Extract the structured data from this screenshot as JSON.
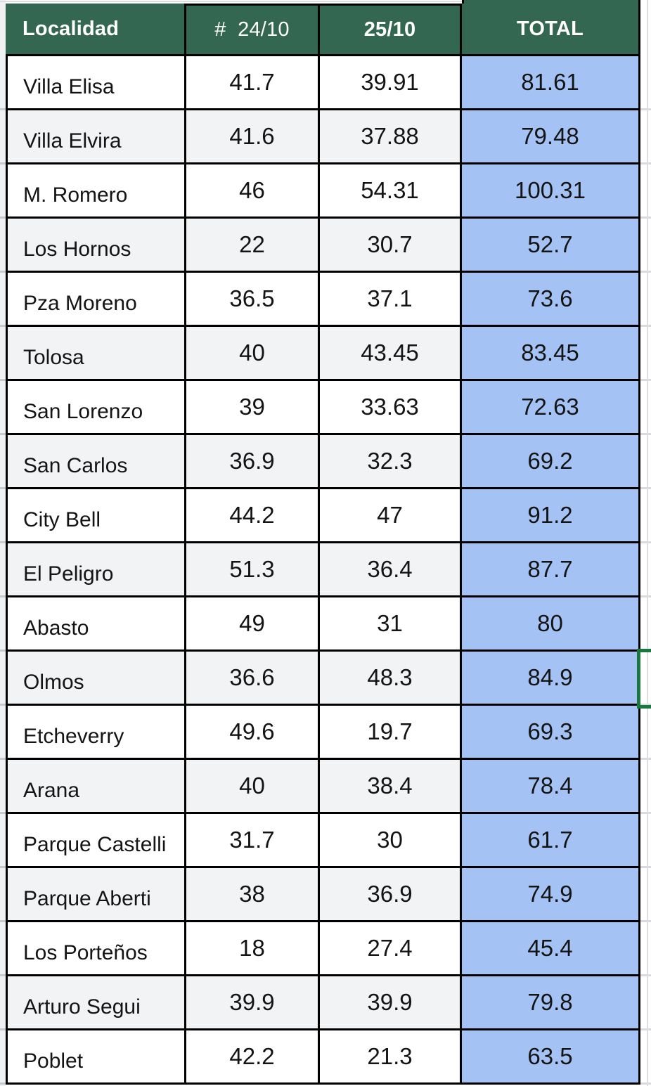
{
  "header": {
    "localidad": "Localidad",
    "col24": "#  24/10",
    "col25": "25/10",
    "total": "TOTAL"
  },
  "table": {
    "rows": [
      {
        "localidad": "Villa Elisa",
        "d24": "41.7",
        "d25": "39.91",
        "total": "81.61"
      },
      {
        "localidad": "Villa Elvira",
        "d24": "41.6",
        "d25": "37.88",
        "total": "79.48"
      },
      {
        "localidad": "M. Romero",
        "d24": "46",
        "d25": "54.31",
        "total": "100.31"
      },
      {
        "localidad": "Los Hornos",
        "d24": "22",
        "d25": "30.7",
        "total": "52.7"
      },
      {
        "localidad": "Pza Moreno",
        "d24": "36.5",
        "d25": "37.1",
        "total": "73.6"
      },
      {
        "localidad": "Tolosa",
        "d24": "40",
        "d25": "43.45",
        "total": "83.45"
      },
      {
        "localidad": "San Lorenzo",
        "d24": "39",
        "d25": "33.63",
        "total": "72.63"
      },
      {
        "localidad": "San Carlos",
        "d24": "36.9",
        "d25": "32.3",
        "total": "69.2"
      },
      {
        "localidad": "City Bell",
        "d24": "44.2",
        "d25": "47",
        "total": "91.2"
      },
      {
        "localidad": "El Peligro",
        "d24": "51.3",
        "d25": "36.4",
        "total": "87.7"
      },
      {
        "localidad": "Abasto",
        "d24": "49",
        "d25": "31",
        "total": "80"
      },
      {
        "localidad": "Olmos",
        "d24": "36.6",
        "d25": "48.3",
        "total": "84.9"
      },
      {
        "localidad": "Etcheverry",
        "d24": "49.6",
        "d25": "19.7",
        "total": "69.3"
      },
      {
        "localidad": "Arana",
        "d24": "40",
        "d25": "38.4",
        "total": "78.4"
      },
      {
        "localidad": "Parque Castelli",
        "d24": "31.7",
        "d25": "30",
        "total": "61.7"
      },
      {
        "localidad": "Parque Aberti",
        "d24": "38",
        "d25": "36.9",
        "total": "74.9"
      },
      {
        "localidad": "Los Porteños",
        "d24": "18",
        "d25": "27.4",
        "total": "45.4"
      },
      {
        "localidad": "Arturo Segui",
        "d24": "39.9",
        "d25": "39.9",
        "total": "79.8"
      },
      {
        "localidad": "Poblet",
        "d24": "42.2",
        "d25": "21.3",
        "total": "63.5"
      }
    ]
  },
  "selection": {
    "note": "cell selection border on cell to the right of TOTAL, Olmos row"
  },
  "colors": {
    "header_bg": "#346751",
    "header_text": "#FFFFFF",
    "total_bg": "#A4C2F4",
    "alt_row_bg": "#F2F3F5",
    "cell_border": "#000000",
    "selection_border": "#1B7740"
  }
}
